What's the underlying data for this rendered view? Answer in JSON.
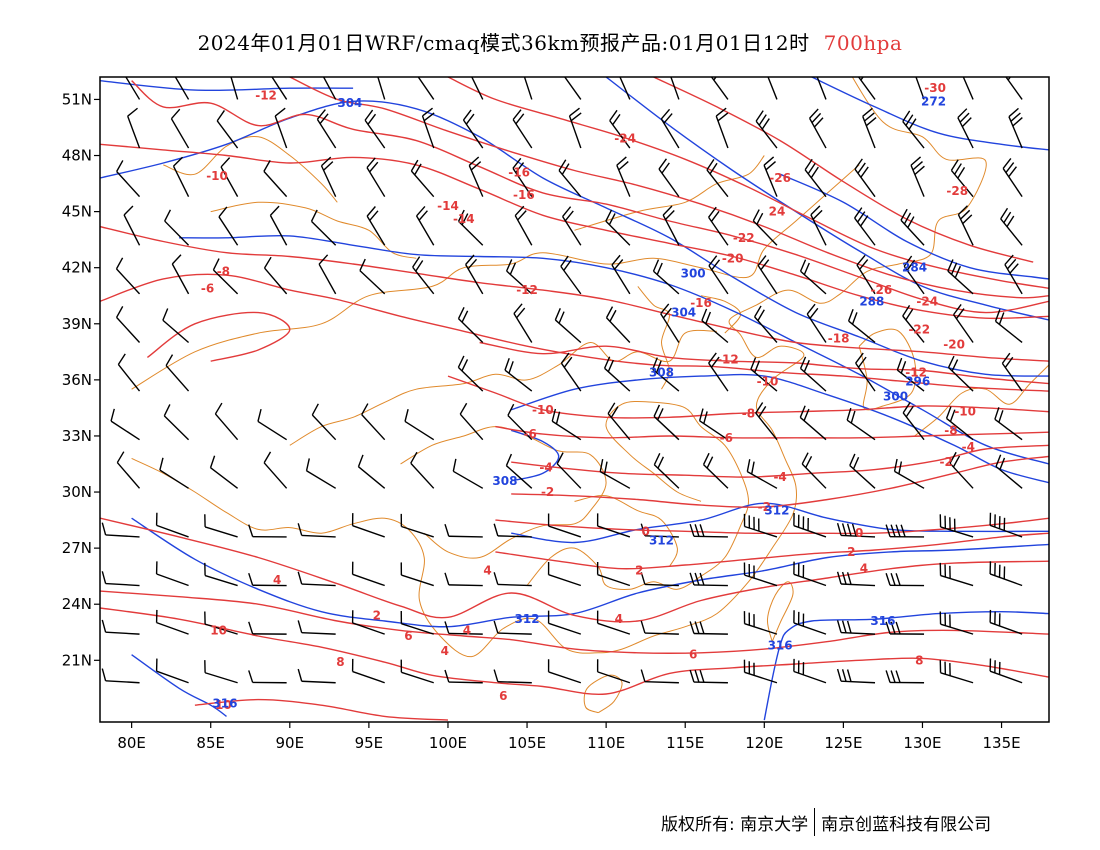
{
  "title": {
    "main": "2024年01月01日WRF/cmaq模式36km预报产品:01月01日12时",
    "level": "700hpa",
    "level_color": "#e23b3b"
  },
  "axes": {
    "lat_labels": [
      "51N",
      "48N",
      "45N",
      "42N",
      "39N",
      "36N",
      "33N",
      "30N",
      "27N",
      "24N",
      "21N"
    ],
    "lon_labels": [
      "80E",
      "85E",
      "90E",
      "95E",
      "100E",
      "105E",
      "110E",
      "115E",
      "120E",
      "125E",
      "130E",
      "135E"
    ]
  },
  "layers": {
    "temperature_color": "#e23b3b",
    "height_color": "#2244dd",
    "border_color": "#e08a2c",
    "wind_color": "#000000"
  },
  "temperature_labels": [
    {
      "text": "-12",
      "lon": 88.5,
      "lat": 51.2
    },
    {
      "text": "-10",
      "lon": 85.4,
      "lat": 46.9
    },
    {
      "text": "-14",
      "lon": 100.0,
      "lat": 45.3
    },
    {
      "text": "-14",
      "lon": 101.0,
      "lat": 44.6
    },
    {
      "text": "-16",
      "lon": 104.5,
      "lat": 47.1
    },
    {
      "text": "-16",
      "lon": 104.8,
      "lat": 45.9
    },
    {
      "text": "-24",
      "lon": 111.2,
      "lat": 48.9
    },
    {
      "text": "-26",
      "lon": 121.0,
      "lat": 46.8
    },
    {
      "text": "24",
      "lon": 120.8,
      "lat": 45.0
    },
    {
      "text": "-22",
      "lon": 118.7,
      "lat": 43.6
    },
    {
      "text": "-20",
      "lon": 118.0,
      "lat": 42.5
    },
    {
      "text": "-16",
      "lon": 116.0,
      "lat": 40.1
    },
    {
      "text": "-12",
      "lon": 105.0,
      "lat": 40.8
    },
    {
      "text": "-8",
      "lon": 85.8,
      "lat": 41.8
    },
    {
      "text": "-6",
      "lon": 84.8,
      "lat": 40.9
    },
    {
      "text": "-30",
      "lon": 130.8,
      "lat": 51.6
    },
    {
      "text": "-28",
      "lon": 132.2,
      "lat": 46.1
    },
    {
      "text": "-26",
      "lon": 127.4,
      "lat": 40.8
    },
    {
      "text": "-24",
      "lon": 130.3,
      "lat": 40.2
    },
    {
      "text": "-22",
      "lon": 129.8,
      "lat": 38.7
    },
    {
      "text": "-20",
      "lon": 132.0,
      "lat": 37.9
    },
    {
      "text": "-18",
      "lon": 124.7,
      "lat": 38.2
    },
    {
      "text": "-12",
      "lon": 117.7,
      "lat": 37.1
    },
    {
      "text": "-12",
      "lon": 129.6,
      "lat": 36.4
    },
    {
      "text": "-10",
      "lon": 120.2,
      "lat": 35.9
    },
    {
      "text": "-10",
      "lon": 132.7,
      "lat": 34.3
    },
    {
      "text": "-10",
      "lon": 106.0,
      "lat": 34.4
    },
    {
      "text": "-8",
      "lon": 119.0,
      "lat": 34.2
    },
    {
      "text": "-8",
      "lon": 131.8,
      "lat": 33.3
    },
    {
      "text": "-6",
      "lon": 117.6,
      "lat": 32.9
    },
    {
      "text": "-6",
      "lon": 105.2,
      "lat": 33.1
    },
    {
      "text": "-4",
      "lon": 106.2,
      "lat": 31.3
    },
    {
      "text": "-4",
      "lon": 121.0,
      "lat": 30.8
    },
    {
      "text": "-4",
      "lon": 132.9,
      "lat": 32.4
    },
    {
      "text": "-2",
      "lon": 106.3,
      "lat": 30.0
    },
    {
      "text": "-2",
      "lon": 120.0,
      "lat": 29.2
    },
    {
      "text": "-2",
      "lon": 131.5,
      "lat": 31.6
    },
    {
      "text": "0",
      "lon": 112.5,
      "lat": 27.9
    },
    {
      "text": "0",
      "lon": 126.0,
      "lat": 27.8
    },
    {
      "text": "2",
      "lon": 125.5,
      "lat": 26.8
    },
    {
      "text": "2",
      "lon": 112.1,
      "lat": 25.8
    },
    {
      "text": "2",
      "lon": 95.5,
      "lat": 23.4
    },
    {
      "text": "4",
      "lon": 126.3,
      "lat": 25.9
    },
    {
      "text": "4",
      "lon": 89.2,
      "lat": 25.3
    },
    {
      "text": "4",
      "lon": 102.5,
      "lat": 25.8
    },
    {
      "text": "4",
      "lon": 110.8,
      "lat": 23.2
    },
    {
      "text": "4",
      "lon": 99.8,
      "lat": 21.5
    },
    {
      "text": "4",
      "lon": 101.2,
      "lat": 22.6
    },
    {
      "text": "6",
      "lon": 97.5,
      "lat": 22.3
    },
    {
      "text": "6",
      "lon": 115.5,
      "lat": 21.3
    },
    {
      "text": "6",
      "lon": 103.5,
      "lat": 19.1
    },
    {
      "text": "8",
      "lon": 93.2,
      "lat": 20.9
    },
    {
      "text": "8",
      "lon": 129.8,
      "lat": 21.0
    },
    {
      "text": "10",
      "lon": 85.5,
      "lat": 22.6
    },
    {
      "text": "10",
      "lon": 85.8,
      "lat": 18.6
    }
  ],
  "height_labels": [
    {
      "text": "304",
      "lon": 93.8,
      "lat": 50.8
    },
    {
      "text": "272",
      "lon": 130.7,
      "lat": 50.9
    },
    {
      "text": "300",
      "lon": 115.5,
      "lat": 41.7
    },
    {
      "text": "304",
      "lon": 114.9,
      "lat": 39.6
    },
    {
      "text": "284",
      "lon": 129.5,
      "lat": 42.0
    },
    {
      "text": "288",
      "lon": 126.8,
      "lat": 40.2
    },
    {
      "text": "296",
      "lon": 129.7,
      "lat": 35.9
    },
    {
      "text": "300",
      "lon": 128.3,
      "lat": 35.1
    },
    {
      "text": "308",
      "lon": 113.5,
      "lat": 36.4
    },
    {
      "text": "308",
      "lon": 103.6,
      "lat": 30.6
    },
    {
      "text": "312",
      "lon": 120.8,
      "lat": 29.0
    },
    {
      "text": "312",
      "lon": 113.5,
      "lat": 27.4
    },
    {
      "text": "312",
      "lon": 105.0,
      "lat": 23.2
    },
    {
      "text": "316",
      "lon": 127.5,
      "lat": 23.1
    },
    {
      "text": "316",
      "lon": 121.0,
      "lat": 21.8
    },
    {
      "text": "316",
      "lon": 85.9,
      "lat": 18.7
    }
  ],
  "footer": {
    "copyright": "版权所有: 南京大学",
    "company": "南京创蓝科技有限公司"
  }
}
